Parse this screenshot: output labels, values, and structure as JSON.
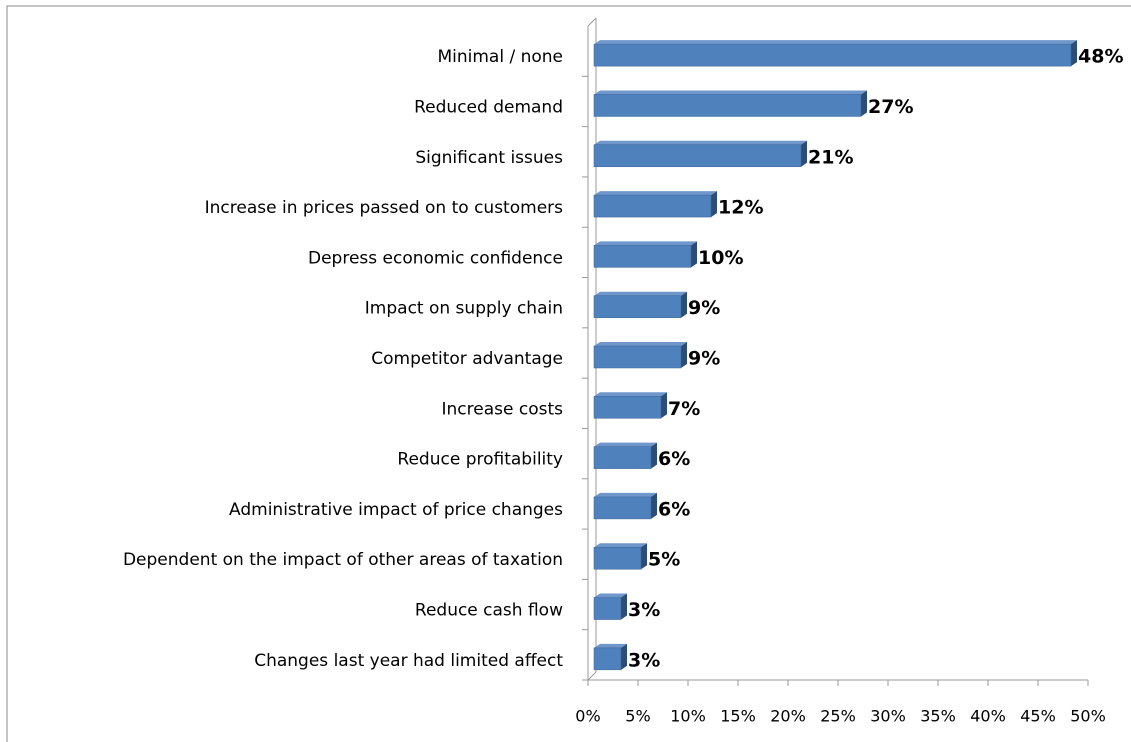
{
  "chart_data": {
    "type": "bar",
    "orientation": "horizontal",
    "categories": [
      "Minimal / none",
      "Reduced demand",
      "Significant issues",
      "Increase in prices passed on to customers",
      "Depress economic confidence",
      "Impact on supply chain",
      "Competitor advantage",
      "Increase costs",
      "Reduce profitability",
      "Administrative impact of price changes",
      "Dependent on the impact of other areas of taxation",
      "Reduce cash flow",
      "Changes last year had limited affect"
    ],
    "values": [
      48,
      27,
      21,
      12,
      10,
      9,
      9,
      7,
      6,
      6,
      5,
      3,
      3
    ],
    "value_labels": [
      "48%",
      "27%",
      "21%",
      "12%",
      "10%",
      "9%",
      "9%",
      "7%",
      "6%",
      "6%",
      "5%",
      "3%",
      "3%"
    ],
    "color": "#4f81bd",
    "xlim": [
      0,
      50
    ],
    "xticks": [
      {
        "value": 0,
        "label": "0%"
      },
      {
        "value": 5,
        "label": "5%"
      },
      {
        "value": 10,
        "label": "10%"
      },
      {
        "value": 15,
        "label": "15%"
      },
      {
        "value": 20,
        "label": "20%"
      },
      {
        "value": 25,
        "label": "25%"
      },
      {
        "value": 30,
        "label": "30%"
      },
      {
        "value": 35,
        "label": "35%"
      },
      {
        "value": 40,
        "label": "40%"
      },
      {
        "value": 45,
        "label": "45%"
      },
      {
        "value": 50,
        "label": "50%"
      }
    ]
  }
}
